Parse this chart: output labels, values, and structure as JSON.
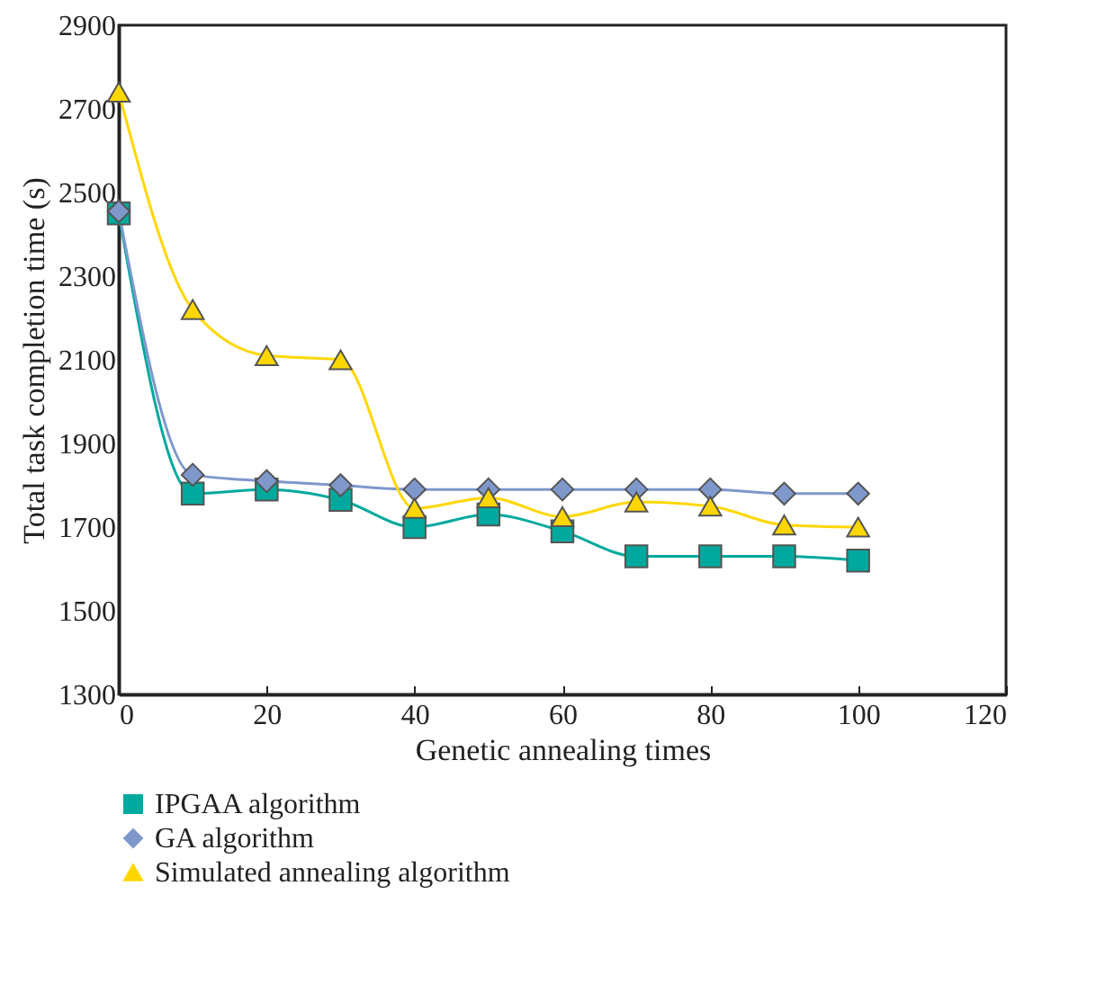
{
  "chart_data": {
    "type": "line",
    "xlabel": "Genetic annealing times",
    "ylabel": "Total task completion time (s)",
    "x": [
      0,
      10,
      20,
      30,
      40,
      50,
      60,
      70,
      80,
      90,
      100
    ],
    "series": [
      {
        "name": "IPGAA algorithm",
        "color": "#00a99d",
        "marker": "square",
        "values": [
          2450,
          1780,
          1790,
          1765,
          1700,
          1730,
          1690,
          1630,
          1630,
          1630,
          1620
        ]
      },
      {
        "name": "GA algorithm",
        "color": "#7f98cc",
        "marker": "diamond",
        "values": [
          2455,
          1825,
          1810,
          1800,
          1790,
          1790,
          1790,
          1790,
          1790,
          1780,
          1780
        ]
      },
      {
        "name": "Simulated annealing algorithm",
        "color": "#ffd700",
        "marker": "triangle",
        "values": [
          2740,
          2220,
          2110,
          2100,
          1745,
          1770,
          1725,
          1760,
          1750,
          1705,
          1700
        ]
      }
    ],
    "xlim": [
      0,
      120
    ],
    "xticks": [
      0,
      20,
      40,
      60,
      80,
      100,
      120
    ],
    "ylim": [
      1300,
      2900
    ],
    "yticks": [
      1300,
      1500,
      1700,
      1900,
      2100,
      2300,
      2500,
      2700,
      2900
    ],
    "grid": false,
    "legend": "bottom",
    "line_style": "solid"
  }
}
